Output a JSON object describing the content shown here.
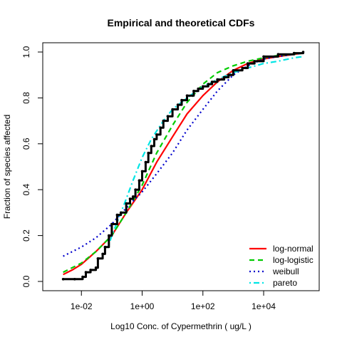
{
  "chart_data": {
    "type": "line",
    "title": "Empirical and theoretical CDFs",
    "xlabel": "Log10 Conc. of Cypermethrin ( ug/L )",
    "ylabel": "Fraction of species affected",
    "x_scale": "log10",
    "xlim": [
      0.0012,
      300000
    ],
    "ylim": [
      0,
      1
    ],
    "x_ticks": [
      0.01,
      1,
      100,
      10000
    ],
    "x_tick_labels": [
      "1e-02",
      "1e+00",
      "1e+02",
      "1e+04"
    ],
    "y_ticks": [
      0,
      0.2,
      0.4,
      0.6,
      0.8,
      1
    ],
    "y_tick_labels": [
      "0.0",
      "0.2",
      "0.4",
      "0.6",
      "0.8",
      "1.0"
    ],
    "legend_position": "bottom-right",
    "empirical": {
      "x": [
        0.0025,
        0.006,
        0.011,
        0.014,
        0.02,
        0.03,
        0.035,
        0.05,
        0.06,
        0.08,
        0.1,
        0.15,
        0.2,
        0.3,
        0.4,
        0.5,
        0.6,
        0.8,
        1.0,
        1.3,
        1.6,
        2.0,
        2.5,
        3.0,
        4.0,
        5.0,
        7.0,
        10,
        15,
        20,
        30,
        50,
        70,
        100,
        150,
        200,
        300,
        500,
        700,
        1000,
        2000,
        3000,
        5000,
        10000,
        30000,
        100000,
        200000
      ],
      "y": [
        0.01,
        0.01,
        0.02,
        0.04,
        0.05,
        0.06,
        0.1,
        0.12,
        0.15,
        0.2,
        0.25,
        0.29,
        0.3,
        0.34,
        0.36,
        0.37,
        0.4,
        0.44,
        0.48,
        0.52,
        0.56,
        0.59,
        0.62,
        0.64,
        0.67,
        0.7,
        0.72,
        0.75,
        0.77,
        0.79,
        0.81,
        0.83,
        0.84,
        0.85,
        0.86,
        0.87,
        0.88,
        0.89,
        0.9,
        0.92,
        0.93,
        0.95,
        0.96,
        0.98,
        0.99,
        0.995,
        1.0
      ]
    },
    "series": [
      {
        "name": "log-normal",
        "color": "#ff0000",
        "dash": "solid",
        "x": [
          0.0025,
          0.005,
          0.01,
          0.03,
          0.1,
          0.3,
          1,
          3,
          10,
          30,
          100,
          300,
          1000,
          3000,
          10000,
          30000,
          100000,
          200000
        ],
        "y": [
          0.03,
          0.05,
          0.075,
          0.13,
          0.2,
          0.3,
          0.4,
          0.52,
          0.63,
          0.73,
          0.81,
          0.87,
          0.92,
          0.95,
          0.97,
          0.98,
          0.99,
          0.995
        ]
      },
      {
        "name": "log-logistic",
        "color": "#00cc00",
        "dash": "dashed",
        "x": [
          0.0025,
          0.005,
          0.01,
          0.03,
          0.1,
          0.3,
          1,
          3,
          10,
          30,
          100,
          300,
          1000,
          3000,
          10000,
          30000,
          100000,
          200000
        ],
        "y": [
          0.04,
          0.06,
          0.08,
          0.13,
          0.2,
          0.3,
          0.42,
          0.56,
          0.68,
          0.78,
          0.86,
          0.91,
          0.94,
          0.96,
          0.975,
          0.985,
          0.99,
          0.995
        ]
      },
      {
        "name": "weibull",
        "color": "#0000cc",
        "dash": "dotted",
        "x": [
          0.0025,
          0.01,
          0.03,
          0.1,
          0.3,
          1,
          3,
          10,
          30,
          100,
          300,
          1000,
          3000,
          10000,
          30000,
          100000,
          200000
        ],
        "y": [
          0.11,
          0.15,
          0.19,
          0.25,
          0.32,
          0.39,
          0.47,
          0.56,
          0.66,
          0.75,
          0.83,
          0.9,
          0.94,
          0.97,
          0.98,
          0.99,
          0.995
        ]
      },
      {
        "name": "pareto",
        "color": "#00e5e5",
        "dash": "dotdash",
        "x": [
          0.08,
          0.1,
          0.2,
          0.3,
          0.5,
          1,
          2,
          5,
          10,
          30,
          100,
          300,
          1000,
          3000,
          10000,
          30000,
          100000,
          200000
        ],
        "y": [
          0.16,
          0.2,
          0.3,
          0.36,
          0.44,
          0.54,
          0.62,
          0.7,
          0.75,
          0.8,
          0.85,
          0.88,
          0.91,
          0.93,
          0.95,
          0.96,
          0.975,
          0.98
        ]
      }
    ]
  }
}
